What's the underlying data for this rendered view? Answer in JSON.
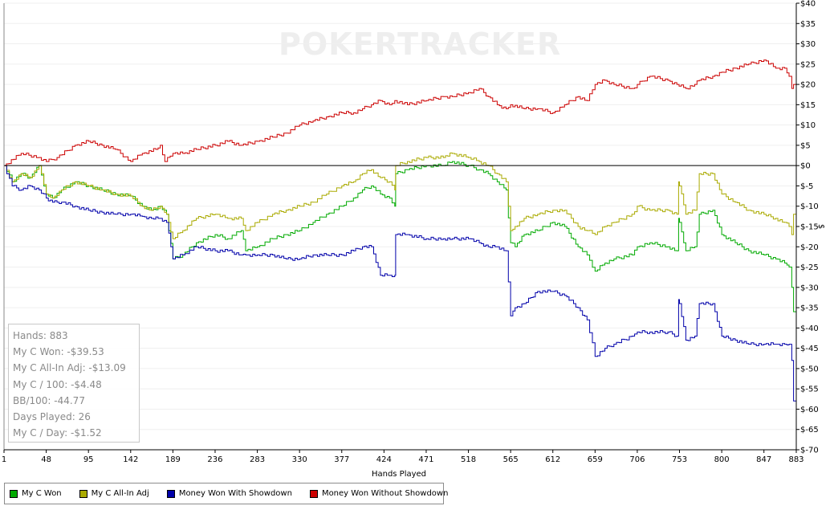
{
  "chart_data": {
    "type": "line",
    "watermark": "POKERTRACKER",
    "xlabel": "Hands Played",
    "ylabel": "$",
    "xlim": [
      1,
      883
    ],
    "ylim": [
      -70,
      40
    ],
    "x_ticks": [
      1,
      48,
      95,
      142,
      189,
      236,
      283,
      330,
      377,
      424,
      471,
      518,
      565,
      612,
      659,
      706,
      753,
      800,
      847,
      883
    ],
    "y_ticks": [
      {
        "v": 40,
        "label": "$40"
      },
      {
        "v": 35,
        "label": "$35"
      },
      {
        "v": 30,
        "label": "$30"
      },
      {
        "v": 25,
        "label": "$25"
      },
      {
        "v": 20,
        "label": "$20"
      },
      {
        "v": 15,
        "label": "$15"
      },
      {
        "v": 10,
        "label": "$10"
      },
      {
        "v": 5,
        "label": "$5"
      },
      {
        "v": 0,
        "label": "$0"
      },
      {
        "v": -5,
        "label": "$-5"
      },
      {
        "v": -10,
        "label": "$-10"
      },
      {
        "v": -15,
        "label": "$-15"
      },
      {
        "v": -20,
        "label": "$-20"
      },
      {
        "v": -25,
        "label": "$-25"
      },
      {
        "v": -30,
        "label": "$-30"
      },
      {
        "v": -35,
        "label": "$-35"
      },
      {
        "v": -40,
        "label": "$-40"
      },
      {
        "v": -45,
        "label": "$-45"
      },
      {
        "v": -50,
        "label": "$-50"
      },
      {
        "v": -55,
        "label": "$-55"
      },
      {
        "v": -60,
        "label": "$-60"
      },
      {
        "v": -65,
        "label": "$-65"
      },
      {
        "v": -70,
        "label": "$-70"
      }
    ],
    "grid": "horizontal",
    "legend_position": "bottom-left",
    "series": [
      {
        "name": "My C Won",
        "color": "#00aa00",
        "x": [
          1,
          10,
          20,
          30,
          40,
          48,
          55,
          65,
          80,
          95,
          110,
          125,
          142,
          155,
          165,
          175,
          182,
          189,
          200,
          215,
          236,
          250,
          265,
          270,
          283,
          300,
          315,
          330,
          345,
          360,
          377,
          390,
          400,
          410,
          420,
          430,
          436,
          437,
          450,
          471,
          490,
          500,
          518,
          530,
          540,
          550,
          560,
          565,
          570,
          580,
          595,
          612,
          625,
          640,
          650,
          659,
          670,
          680,
          700,
          706,
          720,
          740,
          750,
          752,
          753,
          760,
          770,
          775,
          790,
          800,
          815,
          830,
          847,
          860,
          870,
          875,
          878,
          880,
          883
        ],
        "y": [
          0,
          -4,
          -2,
          -3,
          0,
          -7,
          -8,
          -6,
          -4,
          -5,
          -6,
          -7,
          -7.5,
          -10,
          -11,
          -10,
          -12,
          -23,
          -22,
          -19,
          -17,
          -18,
          -16,
          -21,
          -20,
          -18,
          -17,
          -16,
          -14,
          -12,
          -10,
          -8,
          -6,
          -5,
          -7,
          -8,
          -10,
          -2,
          -1,
          0,
          0,
          1,
          0,
          -1,
          -2,
          -4,
          -6,
          -19,
          -20,
          -17,
          -16,
          -14,
          -15,
          -20,
          -22,
          -26,
          -24,
          -23,
          -22,
          -20,
          -19,
          -20,
          -21,
          -13,
          -14,
          -21,
          -20,
          -12,
          -11,
          -17,
          -19,
          -21,
          -22,
          -23,
          -24,
          -25,
          -30,
          -36,
          -39.5
        ]
      },
      {
        "name": "My C All-In Adj",
        "color": "#aaaa00",
        "x": [
          1,
          10,
          20,
          30,
          40,
          48,
          55,
          65,
          80,
          95,
          110,
          125,
          142,
          155,
          165,
          175,
          182,
          189,
          200,
          215,
          236,
          250,
          265,
          270,
          283,
          300,
          315,
          330,
          345,
          360,
          377,
          390,
          400,
          410,
          420,
          430,
          436,
          437,
          450,
          471,
          490,
          500,
          518,
          530,
          540,
          550,
          560,
          565,
          570,
          580,
          595,
          612,
          625,
          640,
          650,
          659,
          670,
          680,
          700,
          706,
          720,
          740,
          750,
          752,
          753,
          760,
          770,
          775,
          790,
          800,
          815,
          830,
          847,
          860,
          870,
          875,
          878,
          880,
          883
        ],
        "y": [
          0,
          -4,
          -2,
          -3,
          0,
          -7,
          -8,
          -6,
          -4,
          -5,
          -6,
          -7,
          -7.5,
          -10,
          -11,
          -10,
          -12,
          -18,
          -16,
          -13,
          -12,
          -13,
          -13,
          -16,
          -14,
          -12,
          -11,
          -10,
          -9,
          -7,
          -5,
          -4,
          -2,
          -1,
          -3,
          -4,
          -6,
          0,
          1,
          2,
          2,
          3,
          2,
          1,
          0,
          -2,
          -4,
          -16,
          -15,
          -13,
          -12,
          -11,
          -11,
          -15,
          -16,
          -17,
          -15,
          -14,
          -12,
          -10,
          -11,
          -11,
          -12,
          -4,
          -5,
          -12,
          -11,
          -2,
          -2,
          -7,
          -9,
          -11,
          -12,
          -13,
          -14,
          -15,
          -17,
          -12,
          -13
        ]
      },
      {
        "name": "Money Won With Showdown",
        "color": "#0000aa",
        "x": [
          1,
          10,
          20,
          30,
          40,
          48,
          55,
          65,
          80,
          95,
          110,
          125,
          142,
          155,
          165,
          175,
          182,
          189,
          200,
          215,
          236,
          250,
          265,
          270,
          283,
          300,
          315,
          330,
          345,
          360,
          377,
          390,
          400,
          410,
          420,
          430,
          436,
          437,
          450,
          471,
          490,
          500,
          518,
          530,
          540,
          550,
          560,
          565,
          570,
          580,
          595,
          612,
          625,
          640,
          650,
          659,
          670,
          680,
          700,
          706,
          720,
          740,
          750,
          752,
          753,
          760,
          770,
          775,
          790,
          800,
          815,
          830,
          847,
          860,
          870,
          875,
          878,
          880,
          883
        ],
        "y": [
          0,
          -5,
          -6,
          -5,
          -6,
          -8,
          -9,
          -9,
          -10,
          -11,
          -11.5,
          -12,
          -12,
          -12.5,
          -13,
          -13,
          -14,
          -23,
          -22,
          -20,
          -21,
          -21,
          -22,
          -22,
          -22,
          -22,
          -23,
          -23,
          -22,
          -22,
          -22,
          -21,
          -20,
          -20,
          -27,
          -27,
          -27,
          -17,
          -17,
          -18,
          -18,
          -18,
          -18,
          -19,
          -20,
          -20,
          -21,
          -37,
          -35,
          -34,
          -31,
          -31,
          -32,
          -35,
          -38,
          -47,
          -45,
          -44,
          -42,
          -41,
          -41,
          -41,
          -42,
          -33,
          -34,
          -43,
          -42,
          -34,
          -34,
          -42,
          -43,
          -44,
          -44,
          -44,
          -44,
          -44,
          -48,
          -58,
          -59.5
        ]
      },
      {
        "name": "Money Won Without Showdown",
        "color": "#cc0000",
        "x": [
          1,
          20,
          40,
          48,
          60,
          80,
          95,
          110,
          125,
          142,
          155,
          170,
          175,
          180,
          189,
          200,
          215,
          236,
          250,
          265,
          283,
          300,
          315,
          330,
          345,
          360,
          377,
          390,
          400,
          410,
          420,
          430,
          436,
          450,
          471,
          490,
          500,
          518,
          530,
          540,
          550,
          560,
          565,
          580,
          595,
          612,
          625,
          640,
          650,
          659,
          670,
          680,
          700,
          706,
          720,
          740,
          750,
          760,
          770,
          775,
          790,
          800,
          815,
          830,
          847,
          860,
          870,
          875,
          878,
          880,
          883
        ],
        "y": [
          0,
          3,
          2,
          1,
          2,
          5,
          6,
          5,
          4,
          1,
          3,
          4,
          5,
          1,
          3,
          3,
          4,
          5,
          6,
          5,
          6,
          7,
          8,
          10,
          11,
          12,
          13,
          13,
          14,
          15,
          16,
          15,
          16,
          15,
          16,
          17,
          17,
          18,
          19,
          17,
          15,
          14,
          15,
          14,
          14,
          13,
          15,
          17,
          16,
          20,
          21,
          20,
          19,
          20,
          22,
          21,
          20,
          19,
          20,
          21,
          22,
          23,
          24,
          25,
          26,
          24,
          24,
          22,
          19,
          20,
          20
        ]
      }
    ]
  },
  "stats": {
    "hands": "Hands: 883",
    "won": "My C Won: -$39.53",
    "allin": "My C All-In Adj: -$13.09",
    "per100": "My C / 100: -$4.48",
    "bb100": "BB/100: -44.77",
    "days": "Days Played: 26",
    "perday": "My C / Day: -$1.52"
  },
  "legend": [
    {
      "label": "My C Won",
      "color": "#00aa00"
    },
    {
      "label": "My C All-In Adj",
      "color": "#aaaa00"
    },
    {
      "label": "Money Won With Showdown",
      "color": "#0000aa"
    },
    {
      "label": "Money Won Without Showdown",
      "color": "#cc0000"
    }
  ]
}
